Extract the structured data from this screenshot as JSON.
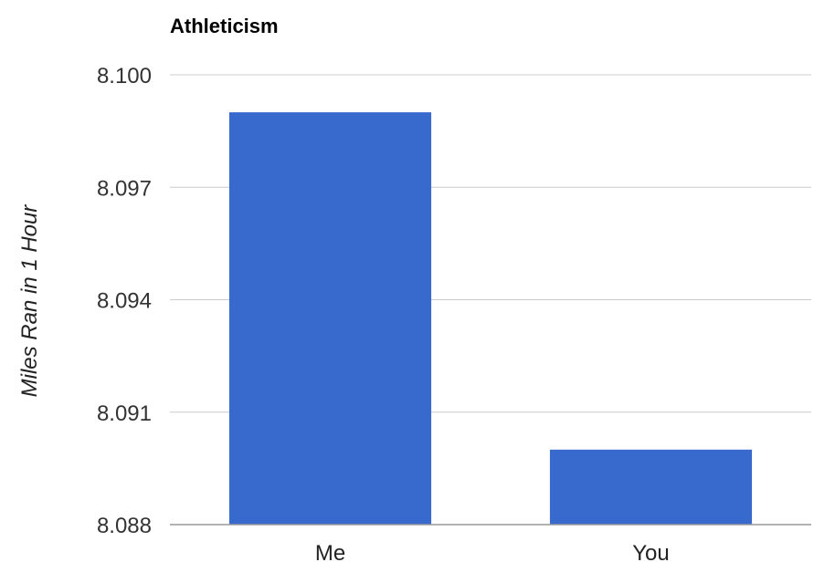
{
  "chart_data": {
    "type": "bar",
    "title": "Athleticism",
    "xlabel": "",
    "ylabel": "Miles Ran in 1 Hour",
    "categories": [
      "Me",
      "You"
    ],
    "series": [
      {
        "values": [
          8.099,
          8.09
        ]
      }
    ],
    "ylim": [
      8.088,
      8.1
    ],
    "y_ticks": [
      "8.088",
      "8.091",
      "8.094",
      "8.097",
      "8.100"
    ],
    "y_tick_values": [
      8.088,
      8.091,
      8.094,
      8.097,
      8.1
    ],
    "grid": true,
    "legend": "none",
    "bar_color": "#3869CC",
    "grid_color": "#CCCCCC",
    "baseline_color": "#999999"
  }
}
